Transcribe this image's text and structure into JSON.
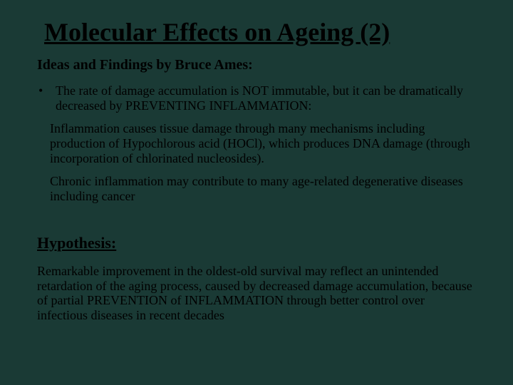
{
  "colors": {
    "background": "#1a3a35",
    "text": "#000000"
  },
  "typography": {
    "family": "Times New Roman",
    "title_fontsize": 36,
    "subtitle_fontsize": 20,
    "body_fontsize": 18,
    "hypothesis_label_fontsize": 22
  },
  "title": "Molecular Effects on Ageing (2)",
  "subtitle": "Ideas and Findings by Bruce Ames:",
  "bullet_symbol": "•",
  "bullet": "The rate of damage accumulation is NOT immutable, but it can be dramatically decreased by PREVENTING INFLAMMATION:",
  "para1": " Inflammation causes tissue damage through many mechanisms including production of Hypochlorous acid (HOCl), which produces DNA damage (through incorporation of chlorinated nucleosides).",
  "para2": "Chronic inflammation may contribute to many age-related degenerative diseases including cancer",
  "hypothesis_label": "Hypothesis:",
  "hypothesis_text": "Remarkable improvement in the oldest-old survival may reflect an unintended retardation of the aging process, caused by decreased damage accumulation, because of partial PREVENTION of INFLAMMATION through better control over infectious diseases in recent decades"
}
